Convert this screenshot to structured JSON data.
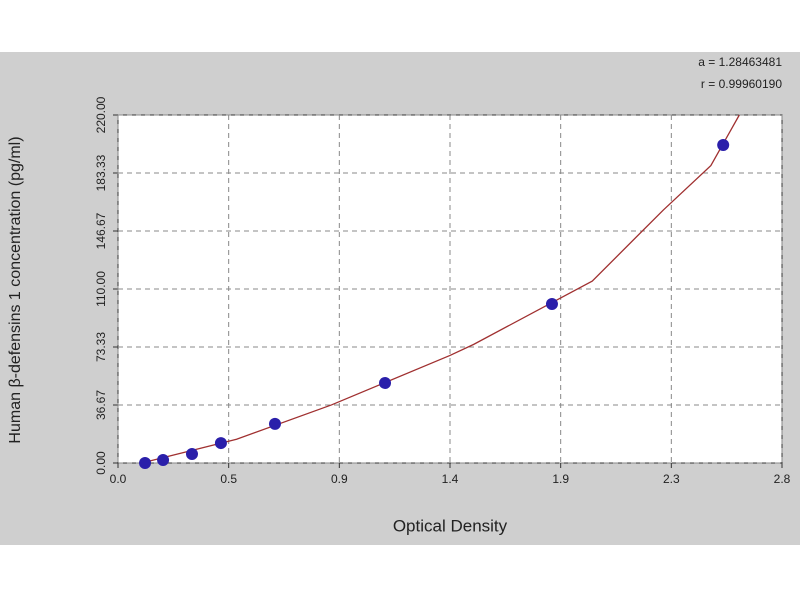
{
  "chart_data": {
    "type": "scatter",
    "annotations": [
      "a = 1.28463481",
      "r = 0.99960190"
    ],
    "x_label": "Optical Density",
    "y_label": "Human β-defensins 1 concentration (pg/ml)",
    "series": [
      {
        "color": "#2a1faa",
        "x": [
          0.114,
          0.19,
          0.312,
          0.434,
          0.662,
          1.126,
          1.83,
          2.552
        ],
        "values": [
          0,
          1.9,
          5.7,
          12.6,
          24.7,
          50.6,
          100.5,
          201
        ]
      }
    ],
    "curve": {
      "color": "#a03030",
      "x": [
        0.1,
        0.5,
        0.9,
        1.4,
        1.5,
        2.0,
        2.3,
        2.5,
        2.62
      ],
      "values": [
        0,
        15,
        36.7,
        68,
        75,
        115,
        160,
        188,
        220
      ]
    },
    "xlim": [
      0,
      2.8
    ],
    "xticks": [
      {
        "value": 0,
        "label": "0.0"
      },
      {
        "value": 0.4667,
        "label": "0.5"
      },
      {
        "value": 0.9333,
        "label": "0.9"
      },
      1.4,
      {
        "value": 1.8667,
        "label": "1.9"
      },
      {
        "value": 2.3333,
        "label": "2.3"
      },
      2.8
    ],
    "ylim": [
      0,
      220
    ],
    "yticks": [
      {
        "value": 0,
        "label": "0.00"
      },
      36.67,
      73.33,
      {
        "value": 110,
        "label": "110.00"
      },
      146.67,
      183.33,
      {
        "value": 220,
        "label": "220.00"
      }
    ],
    "grid": true
  }
}
